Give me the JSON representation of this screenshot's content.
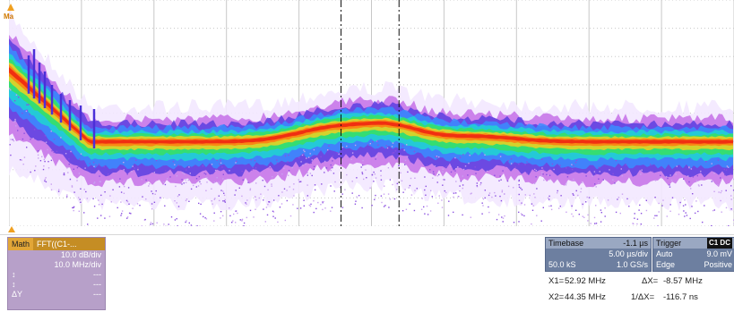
{
  "marker": {
    "label": "Ma"
  },
  "math": {
    "name": "Math",
    "function": "FFT((C1-...",
    "vdiv": "10.0 dB/div",
    "hdiv": "10.0 MHz/div",
    "row3_label": "↕",
    "row3_value": "---",
    "row4_label": "↕",
    "row4_value": "---",
    "row5_label": "ΔY",
    "row5_value": "---"
  },
  "timebase": {
    "title": "Timebase",
    "delay": "-1.1 µs",
    "tdiv": "5.00 µs/div",
    "samples": "50.0 kS",
    "rate": "1.0 GS/s"
  },
  "trigger": {
    "title": "Trigger",
    "badge": "C1 DC",
    "mode": "Auto",
    "level": "9.0 mV",
    "type": "Edge",
    "slope": "Positive"
  },
  "cursors": {
    "x1_label": "X1=",
    "x1_value": "52.92 MHz",
    "dx_label": "ΔX=",
    "dx_value": "-8.57 MHz",
    "x2_label": "X2=",
    "x2_value": "44.35 MHz",
    "inv_label": "1/ΔX=",
    "inv_value": "-116.7 ns"
  },
  "colors": {
    "grid": "#c8c8c8",
    "spectrum": [
      "#f3e8ff",
      "#c470e8",
      "#5a3fe0",
      "#3a8cff",
      "#20d6d0",
      "#38e060",
      "#f0d020",
      "#ff7a10",
      "#ee2010"
    ]
  },
  "waveform": {
    "cursor_x1_fraction": 0.458,
    "cursor_x2_fraction": 0.538
  }
}
